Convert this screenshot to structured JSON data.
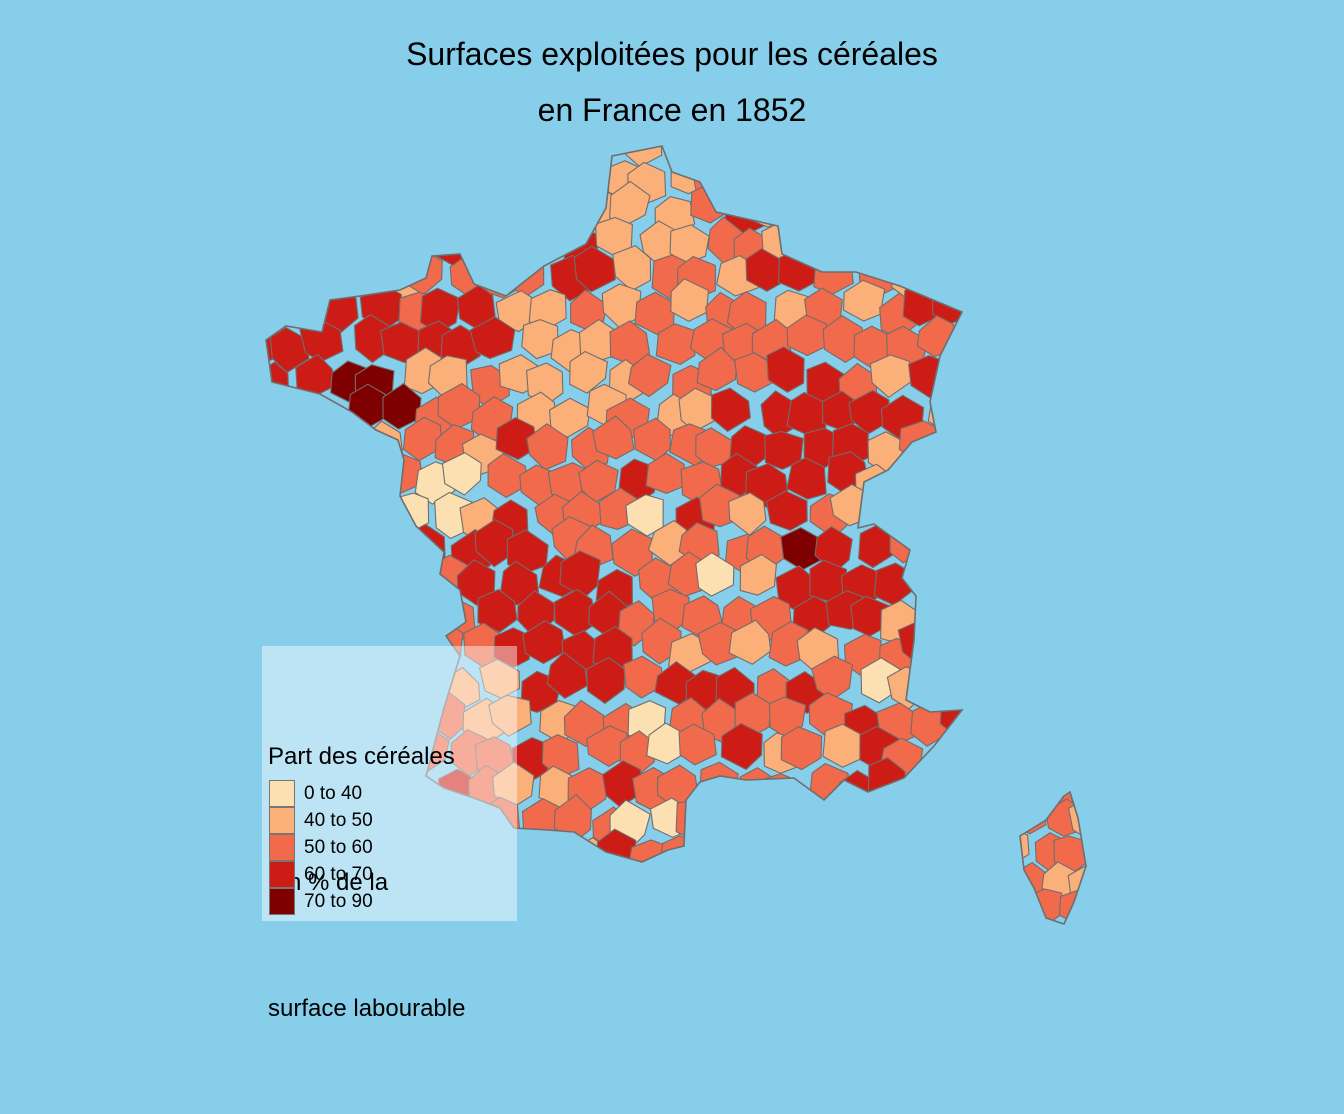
{
  "title": {
    "line1": "Surfaces exploitées pour les céréales",
    "line2": "en France en 1852"
  },
  "legend": {
    "title_lines": [
      "Part des céréales",
      " en % de la",
      "surface labourable"
    ],
    "classes": [
      {
        "label": "0 to 40",
        "color": "#FDE0B2"
      },
      {
        "label": "40 to 50",
        "color": "#FBAF79"
      },
      {
        "label": "50 to 60",
        "color": "#F16A4B"
      },
      {
        "label": "60 to 70",
        "color": "#CD1C15"
      },
      {
        "label": "70 to 90",
        "color": "#7F0000"
      }
    ]
  },
  "colors": {
    "sea": "#87CEEB",
    "borders": "#6E6E6E"
  }
}
